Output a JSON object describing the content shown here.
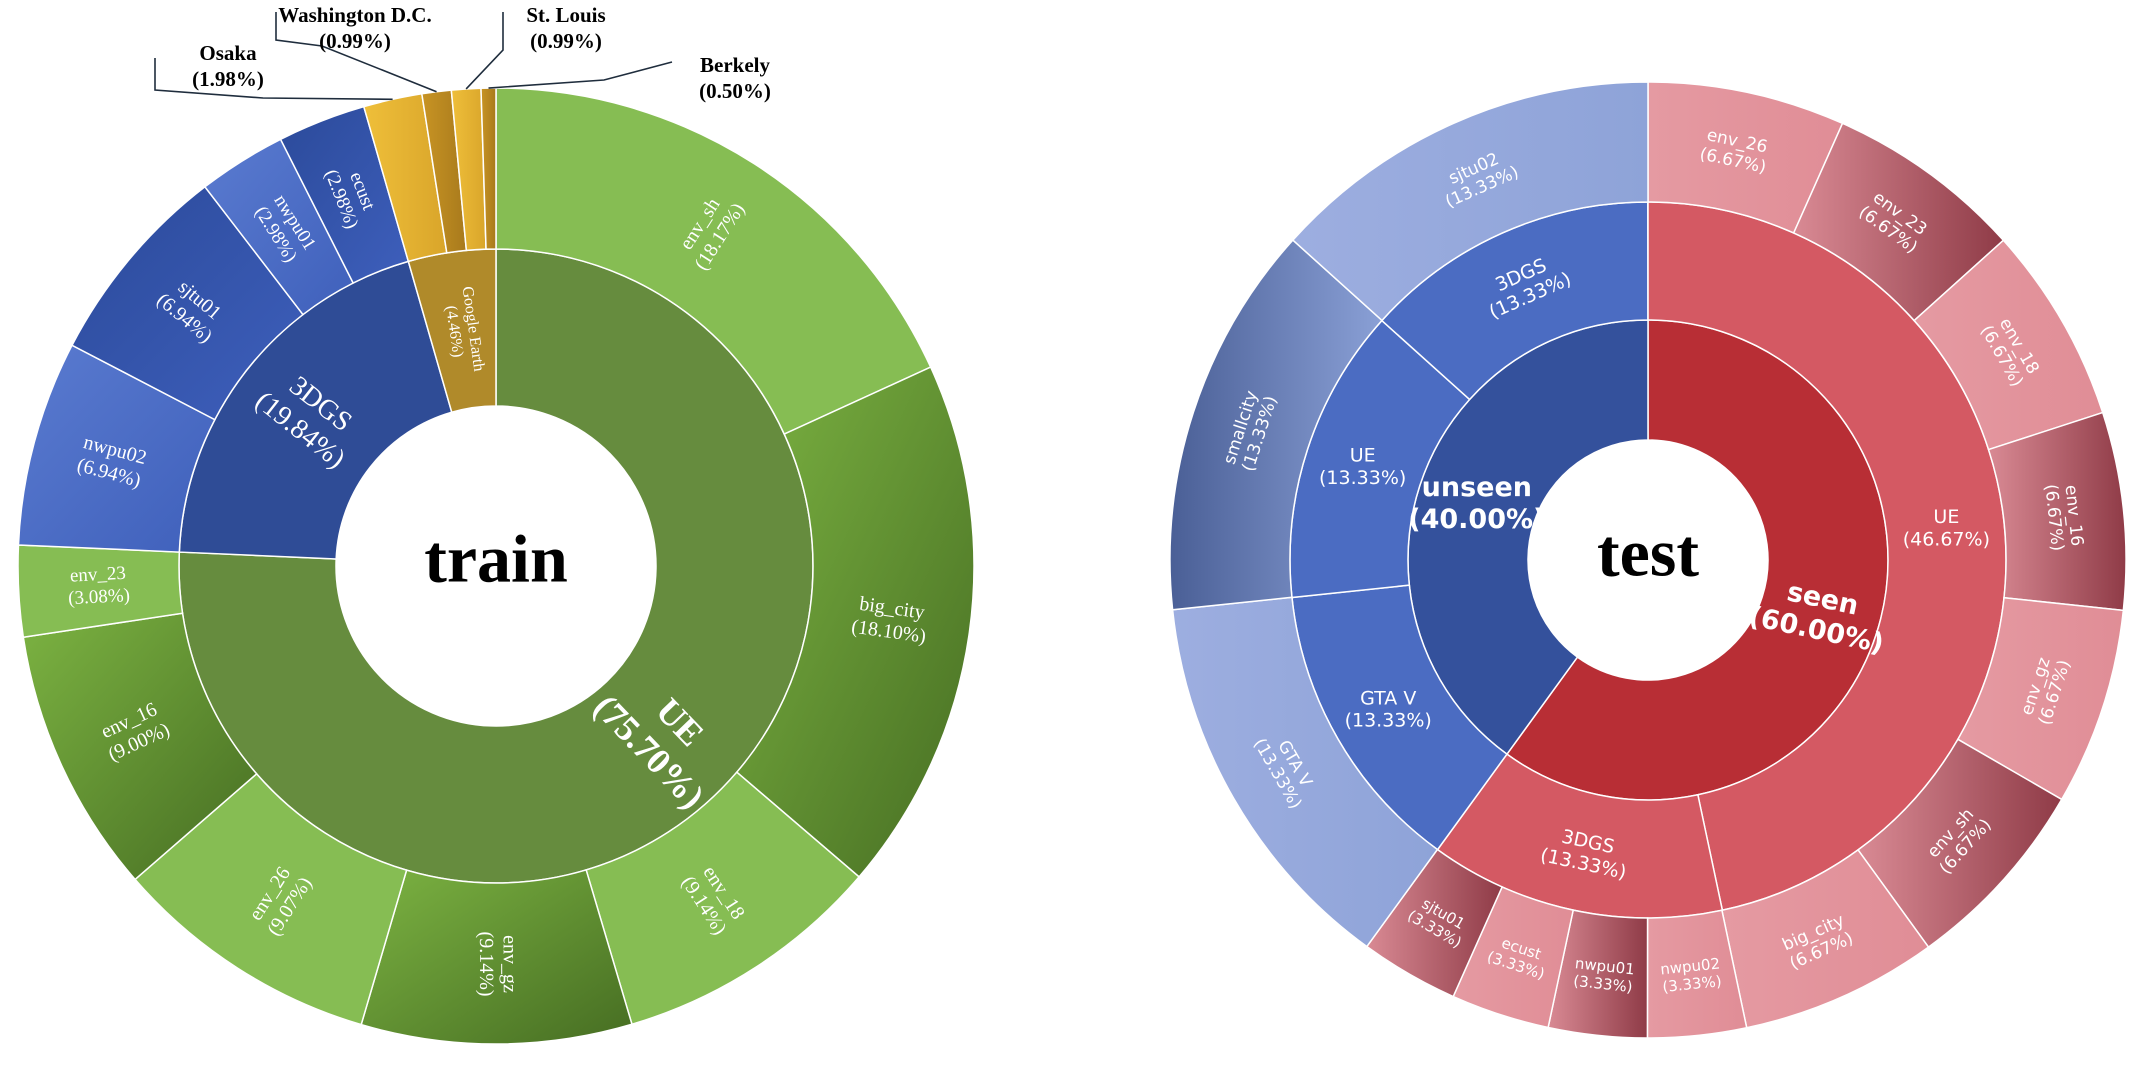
{
  "chart_data": [
    {
      "type": "sunburst",
      "title": "train",
      "inner_ring": [
        {
          "label": "UE",
          "percent": "(75.70%)",
          "value": 75.7,
          "color": "#668c3e"
        },
        {
          "label": "3DGS",
          "percent": "(19.84%)",
          "value": 19.84,
          "color": "#2f4c96"
        },
        {
          "label": "Google Earth",
          "percent": "(4.46%)",
          "value": 4.46,
          "color": "#b08a2a"
        }
      ],
      "outer_ring": [
        {
          "label": "env_sh",
          "percent": "(18.17%)",
          "value": 18.17,
          "parent": "UE"
        },
        {
          "label": "big_city",
          "percent": "(18.10%)",
          "value": 18.1,
          "parent": "UE"
        },
        {
          "label": "env_18",
          "percent": "(9.14%)",
          "value": 9.14,
          "parent": "UE"
        },
        {
          "label": "env_gz",
          "percent": "(9.14%)",
          "value": 9.14,
          "parent": "UE"
        },
        {
          "label": "env_26",
          "percent": "(9.07%)",
          "value": 9.07,
          "parent": "UE"
        },
        {
          "label": "env_16",
          "percent": "(9.00%)",
          "value": 9.0,
          "parent": "UE"
        },
        {
          "label": "env_23",
          "percent": "(3.08%)",
          "value": 3.08,
          "parent": "UE"
        },
        {
          "label": "nwpu02",
          "percent": "(6.94%)",
          "value": 6.94,
          "parent": "3DGS"
        },
        {
          "label": "sjtu01",
          "percent": "(6.94%)",
          "value": 6.94,
          "parent": "3DGS"
        },
        {
          "label": "nwpu01",
          "percent": "(2.98%)",
          "value": 2.98,
          "parent": "3DGS"
        },
        {
          "label": "ecust",
          "percent": "(2.98%)",
          "value": 2.98,
          "parent": "3DGS"
        },
        {
          "label": "Osaka",
          "percent": "(1.98%)",
          "value": 1.98,
          "parent": "Google Earth"
        },
        {
          "label": "Washington D.C.",
          "percent": "(0.99%)",
          "value": 0.99,
          "parent": "Google Earth"
        },
        {
          "label": "St. Louis",
          "percent": "(0.99%)",
          "value": 0.99,
          "parent": "Google Earth"
        },
        {
          "label": "Berkely",
          "percent": "(0.50%)",
          "value": 0.5,
          "parent": "Google Earth"
        }
      ]
    },
    {
      "type": "sunburst",
      "title": "test",
      "inner_ring": [
        {
          "label": "seen",
          "percent": "(60.00%)",
          "value": 60.0,
          "color": "#b82e35"
        },
        {
          "label": "unseen",
          "percent": "(40.00%)",
          "value": 40.0,
          "color": "#34519c"
        }
      ],
      "middle_ring": [
        {
          "label": "UE",
          "percent": "(46.67%)",
          "value": 46.67,
          "parent": "seen"
        },
        {
          "label": "3DGS",
          "percent": "(13.33%)",
          "value": 13.33,
          "parent": "seen"
        },
        {
          "label": "GTA V",
          "percent": "(13.33%)",
          "value": 13.33,
          "parent": "unseen"
        },
        {
          "label": "UE",
          "percent": "(13.33%)",
          "value": 13.33,
          "parent": "unseen"
        },
        {
          "label": "3DGS",
          "percent": "(13.33%)",
          "value": 13.33,
          "parent": "unseen"
        }
      ],
      "outer_ring": [
        {
          "label": "env_26",
          "percent": "(6.67%)",
          "value": 6.67,
          "parent": "UE"
        },
        {
          "label": "env_23",
          "percent": "(6.67%)",
          "value": 6.67,
          "parent": "UE"
        },
        {
          "label": "env_18",
          "percent": "(6.67%)",
          "value": 6.67,
          "parent": "UE"
        },
        {
          "label": "env_16",
          "percent": "(6.67%)",
          "value": 6.67,
          "parent": "UE"
        },
        {
          "label": "env_gz",
          "percent": "(6.67%)",
          "value": 6.67,
          "parent": "UE"
        },
        {
          "label": "env_sh",
          "percent": "(6.67%)",
          "value": 6.67,
          "parent": "UE"
        },
        {
          "label": "big_city",
          "percent": "(6.67%)",
          "value": 6.67,
          "parent": "UE"
        },
        {
          "label": "nwpu02",
          "percent": "(3.33%)",
          "value": 3.33,
          "parent": "3DGS"
        },
        {
          "label": "nwpu01",
          "percent": "(3.33%)",
          "value": 3.33,
          "parent": "3DGS"
        },
        {
          "label": "ecust",
          "percent": "(3.33%)",
          "value": 3.33,
          "parent": "3DGS"
        },
        {
          "label": "sjtu01",
          "percent": "(3.33%)",
          "value": 3.33,
          "parent": "3DGS"
        },
        {
          "label": "GTA V",
          "percent": "(13.33%)",
          "value": 13.33,
          "parent": "GTA V"
        },
        {
          "label": "smallcity",
          "percent": "(13.33%)",
          "value": 13.33,
          "parent": "UE"
        },
        {
          "label": "sjtu02",
          "percent": "(13.33%)",
          "value": 13.33,
          "parent": "3DGS"
        }
      ]
    }
  ]
}
